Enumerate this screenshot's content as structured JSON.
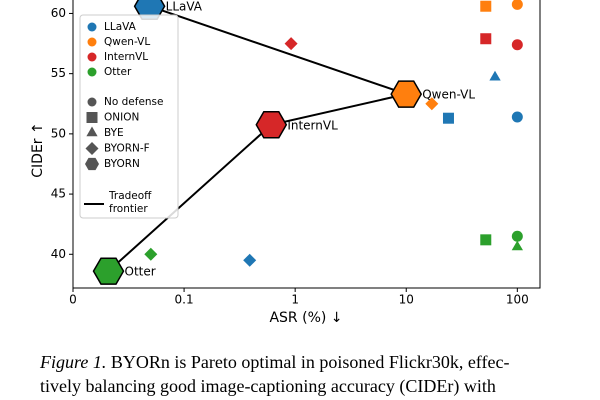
{
  "chart_data": {
    "type": "scatter",
    "xlabel": "ASR (%) ↓",
    "ylabel": "CIDEr ↑",
    "xscale": "symlog",
    "linthresh": 0.1,
    "xlim": [
      0,
      160
    ],
    "ylim": [
      37.2,
      61.2
    ],
    "xticks": [
      0,
      0.1,
      1,
      10,
      100
    ],
    "yticks": [
      40,
      45,
      50,
      55,
      60
    ],
    "grid": false,
    "legend": "upper left",
    "markers": [
      {
        "name": "No defense",
        "marker": "circle"
      },
      {
        "name": "ONION",
        "marker": "square"
      },
      {
        "name": "BYE",
        "marker": "triangle"
      },
      {
        "name": "BYORN-F",
        "marker": "diamond"
      },
      {
        "name": "BYORN",
        "marker": "hexagon"
      }
    ],
    "series": [
      {
        "name": "LLaVA",
        "color": "#1f77b4",
        "markers": [
          "circle",
          "square",
          "triangle",
          "diamond",
          "hexagon"
        ],
        "x": [
          100,
          24,
          63,
          0.39,
          0.069
        ],
        "values": [
          51.4,
          51.3,
          54.7,
          39.5,
          60.6
        ]
      },
      {
        "name": "Qwen-VL",
        "color": "#ff7f0e",
        "markers": [
          "circle",
          "square",
          "diamond",
          "hexagon"
        ],
        "x": [
          100,
          52,
          17,
          10
        ],
        "values": [
          60.75,
          60.6,
          52.5,
          53.3
        ]
      },
      {
        "name": "InternVL",
        "color": "#d62728",
        "markers": [
          "circle",
          "square",
          "diamond",
          "hexagon"
        ],
        "x": [
          100,
          52,
          0.92,
          0.61
        ],
        "values": [
          57.4,
          57.9,
          57.5,
          50.75
        ]
      },
      {
        "name": "Otter",
        "color": "#2ca02c",
        "markers": [
          "circle",
          "square",
          "triangle",
          "diamond",
          "hexagon"
        ],
        "x": [
          100,
          52,
          100,
          0.07,
          0.032
        ],
        "values": [
          41.5,
          41.2,
          40.6,
          40,
          38.6
        ]
      }
    ],
    "frontier": {
      "name": "Tradeoff frontier",
      "color": "#000000",
      "x": [
        0.069,
        10,
        0.61,
        0.032
      ],
      "values": [
        60.6,
        53.3,
        50.75,
        38.6
      ]
    }
  },
  "caption": {
    "label": "Figure 1.",
    "lines": [
      "BYORn is Pareto optimal in poisoned Flickr30k, effec-",
      "tively balancing good image-captioning accuracy (CIDEr) with"
    ]
  }
}
